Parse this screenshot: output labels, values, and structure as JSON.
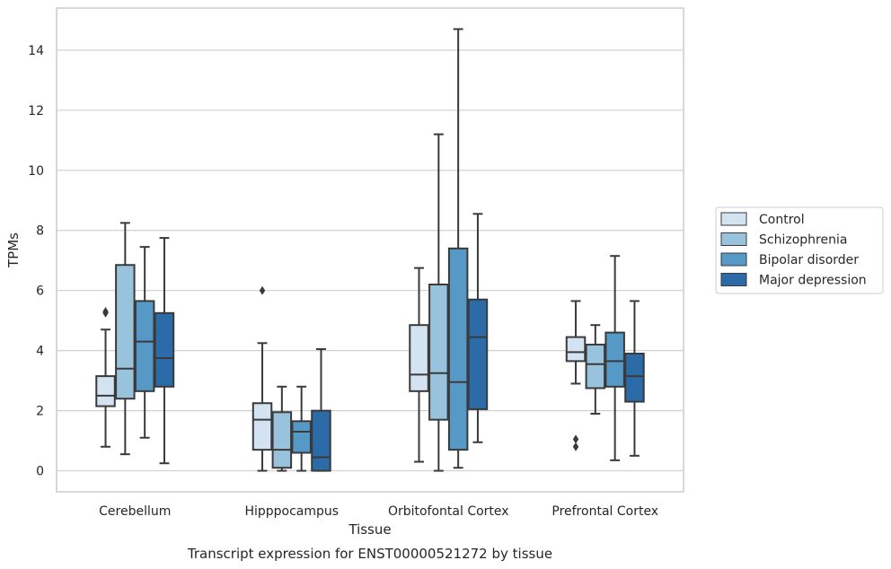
{
  "chart_data": {
    "type": "box",
    "title": "",
    "caption": "Transcript expression for ENST00000521272 by tissue",
    "xlabel": "Tissue",
    "ylabel": "TPMs",
    "ylim": [
      -0.7,
      15.4
    ],
    "yticks": [
      0,
      2,
      4,
      6,
      8,
      10,
      12,
      14
    ],
    "grid": "horizontal",
    "legend_position": "right",
    "categories": [
      "Cerebellum",
      "Hipppocampus",
      "Orbitofontal Cortex",
      "Prefrontal Cortex"
    ],
    "series": [
      {
        "name": "Control",
        "color": "#d4e3f1",
        "boxes": [
          {
            "whislo": 0.8,
            "q1": 2.15,
            "med": 2.5,
            "q3": 3.15,
            "whishi": 4.7,
            "fliers": [
              5.3,
              5.25
            ]
          },
          {
            "whislo": 0.0,
            "q1": 0.7,
            "med": 1.7,
            "q3": 2.25,
            "whishi": 4.25,
            "fliers": [
              6.0
            ]
          },
          {
            "whislo": 0.3,
            "q1": 2.65,
            "med": 3.2,
            "q3": 4.85,
            "whishi": 6.75,
            "fliers": []
          },
          {
            "whislo": 2.9,
            "q1": 3.65,
            "med": 3.95,
            "q3": 4.45,
            "whishi": 5.65,
            "fliers": [
              1.05,
              0.8
            ]
          }
        ]
      },
      {
        "name": "Schizophrenia",
        "color": "#99c2dc",
        "boxes": [
          {
            "whislo": 0.55,
            "q1": 2.4,
            "med": 3.4,
            "q3": 6.85,
            "whishi": 8.25,
            "fliers": []
          },
          {
            "whislo": 0.0,
            "q1": 0.1,
            "med": 0.7,
            "q3": 1.95,
            "whishi": 2.8,
            "fliers": []
          },
          {
            "whislo": 0.0,
            "q1": 1.7,
            "med": 3.25,
            "q3": 6.2,
            "whishi": 11.2,
            "fliers": []
          },
          {
            "whislo": 1.9,
            "q1": 2.75,
            "med": 3.55,
            "q3": 4.2,
            "whishi": 4.85,
            "fliers": []
          }
        ]
      },
      {
        "name": "Bipolar disorder",
        "color": "#5799c6",
        "boxes": [
          {
            "whislo": 1.1,
            "q1": 2.65,
            "med": 4.3,
            "q3": 5.65,
            "whishi": 7.45,
            "fliers": []
          },
          {
            "whislo": 0.0,
            "q1": 0.6,
            "med": 1.3,
            "q3": 1.65,
            "whishi": 2.8,
            "fliers": []
          },
          {
            "whislo": 0.1,
            "q1": 0.7,
            "med": 2.95,
            "q3": 7.4,
            "whishi": 14.7,
            "fliers": []
          },
          {
            "whislo": 0.35,
            "q1": 2.8,
            "med": 3.65,
            "q3": 4.6,
            "whishi": 7.15,
            "fliers": []
          }
        ]
      },
      {
        "name": "Major depression",
        "color": "#2b6ba8",
        "boxes": [
          {
            "whislo": 0.25,
            "q1": 2.8,
            "med": 3.75,
            "q3": 5.25,
            "whishi": 7.75,
            "fliers": []
          },
          {
            "whislo": 0.0,
            "q1": 0.0,
            "med": 0.45,
            "q3": 2.0,
            "whishi": 4.05,
            "fliers": []
          },
          {
            "whislo": 0.95,
            "q1": 2.05,
            "med": 4.45,
            "q3": 5.7,
            "whishi": 8.55,
            "fliers": []
          },
          {
            "whislo": 0.5,
            "q1": 2.3,
            "med": 3.15,
            "q3": 3.9,
            "whishi": 5.65,
            "fliers": []
          }
        ]
      }
    ]
  }
}
